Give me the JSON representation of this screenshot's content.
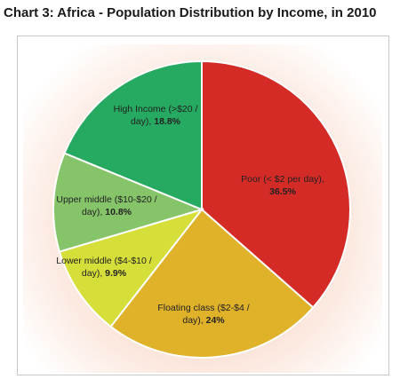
{
  "title": "Chart 3: Africa - Population Distribution by Income, in 2010",
  "chart_data": {
    "type": "pie",
    "title": "Chart 3: Africa - Population Distribution by Income, in 2010",
    "slices": [
      {
        "line1": "Poor (< $2 per day),",
        "line2_prefix": "",
        "value_label": "36.5%",
        "value": 36.5,
        "color": "#d42b27"
      },
      {
        "line1": "Floating class ($2-$4 /",
        "line2_prefix": "day), ",
        "value_label": "24%",
        "value": 24,
        "color": "#e0b22a"
      },
      {
        "line1": "Lower middle ($4-$10 /",
        "line2_prefix": "day), ",
        "value_label": "9.9%",
        "value": 9.9,
        "color": "#d6de3a"
      },
      {
        "line1": "Upper middle ($10-$20 /",
        "line2_prefix": "day), ",
        "value_label": "10.8%",
        "value": 10.8,
        "color": "#86c46a"
      },
      {
        "line1": "High Income (>$20 /",
        "line2_prefix": "day), ",
        "value_label": "18.8%",
        "value": 18.8,
        "color": "#26a960"
      }
    ],
    "start_angle_deg": 0,
    "direction": "clockwise"
  }
}
